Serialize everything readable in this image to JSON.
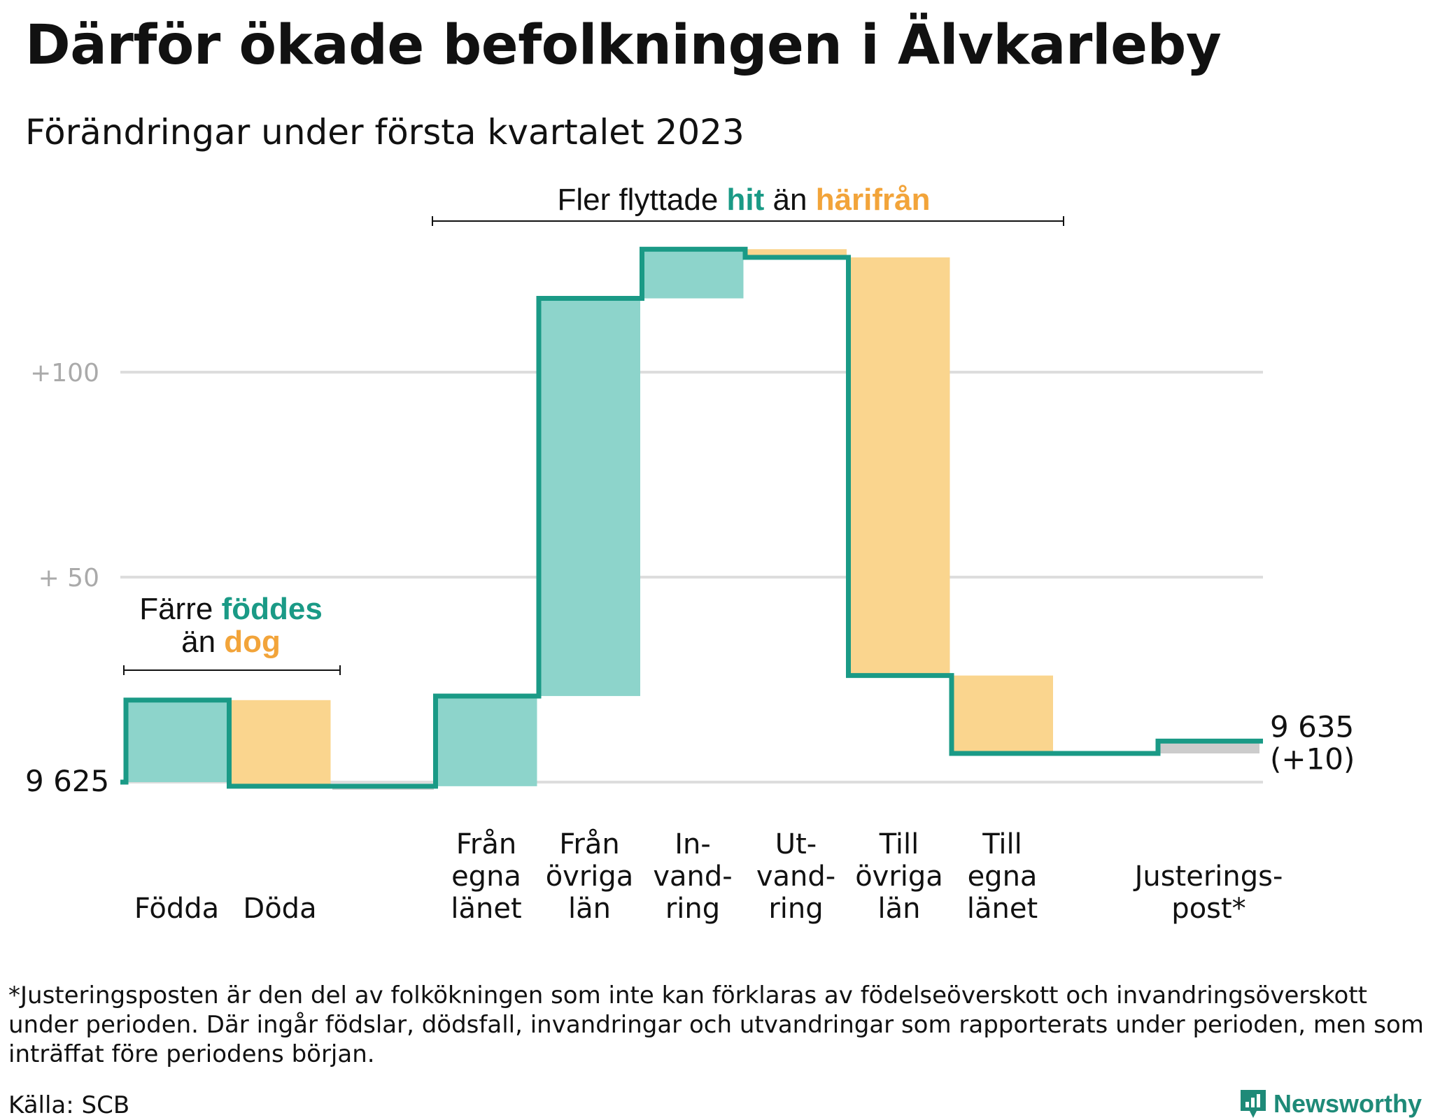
{
  "title": "Därför ökade befolkningen i Älvkarleby",
  "subtitle": "Förändringar under första kvartalet 2023",
  "annotations": {
    "births": {
      "line1_prefix": "Färre ",
      "line1_highlight": "föddes",
      "line2_prefix": "än ",
      "line2_highlight": "dog"
    },
    "migration": {
      "prefix": "Fler flyttade ",
      "highlight1": "hit",
      "middle": " än ",
      "highlight2": "härifrån"
    }
  },
  "footnote": "*Justeringsposten är den del av folkökningen som inte kan förklaras av födelseöverskott och invandringsöverskott under perioden. Där ingår födslar, dödsfall, invandringar och utvandringar som rapporterats under perioden, men som inträffat före periodens början.",
  "source": "Källa: SCB",
  "brand": {
    "name": "Newsworthy"
  },
  "colors": {
    "increase": "#8dd4cb",
    "decrease": "#fad58e",
    "adjustment": "#cccccc",
    "line": "#1a9a86",
    "grid": "#dddddd",
    "highlight_teal": "#1a9a86",
    "highlight_orange": "#f2a43a"
  },
  "chart_data": {
    "type": "waterfall",
    "start_value": 9625,
    "end_value": 9635,
    "end_label_lines": [
      "9 635",
      "(+10)"
    ],
    "start_label": "9 625",
    "y_ticks": [
      {
        "value": 0,
        "label": ""
      },
      {
        "value": 50,
        "label": "+ 50"
      },
      {
        "value": 100,
        "label": "+100"
      }
    ],
    "ylim": [
      -2,
      135
    ],
    "steps": [
      {
        "label_lines": [
          "Födda"
        ],
        "value": 20,
        "kind": "increase"
      },
      {
        "label_lines": [
          "Döda"
        ],
        "value": -21,
        "kind": "decrease"
      },
      {
        "label_lines": [],
        "value": 0,
        "kind": "adjustment"
      },
      {
        "label_lines": [
          "Från",
          "egna",
          "länet"
        ],
        "value": 22,
        "kind": "increase"
      },
      {
        "label_lines": [
          "Från",
          "övriga",
          "län"
        ],
        "value": 97,
        "kind": "increase"
      },
      {
        "label_lines": [
          "In-",
          "vand-",
          "ring"
        ],
        "value": 12,
        "kind": "increase"
      },
      {
        "label_lines": [
          "Ut-",
          "vand-",
          "ring"
        ],
        "value": -2,
        "kind": "decrease"
      },
      {
        "label_lines": [
          "Till",
          "övriga",
          "län"
        ],
        "value": -102,
        "kind": "decrease"
      },
      {
        "label_lines": [
          "Till",
          "egna",
          "länet"
        ],
        "value": -19,
        "kind": "decrease"
      },
      {
        "label_lines": [],
        "value": 0,
        "kind": "none"
      },
      {
        "label_lines": [
          "Justerings-",
          "post*"
        ],
        "value": 3,
        "kind": "adjustment"
      }
    ]
  }
}
